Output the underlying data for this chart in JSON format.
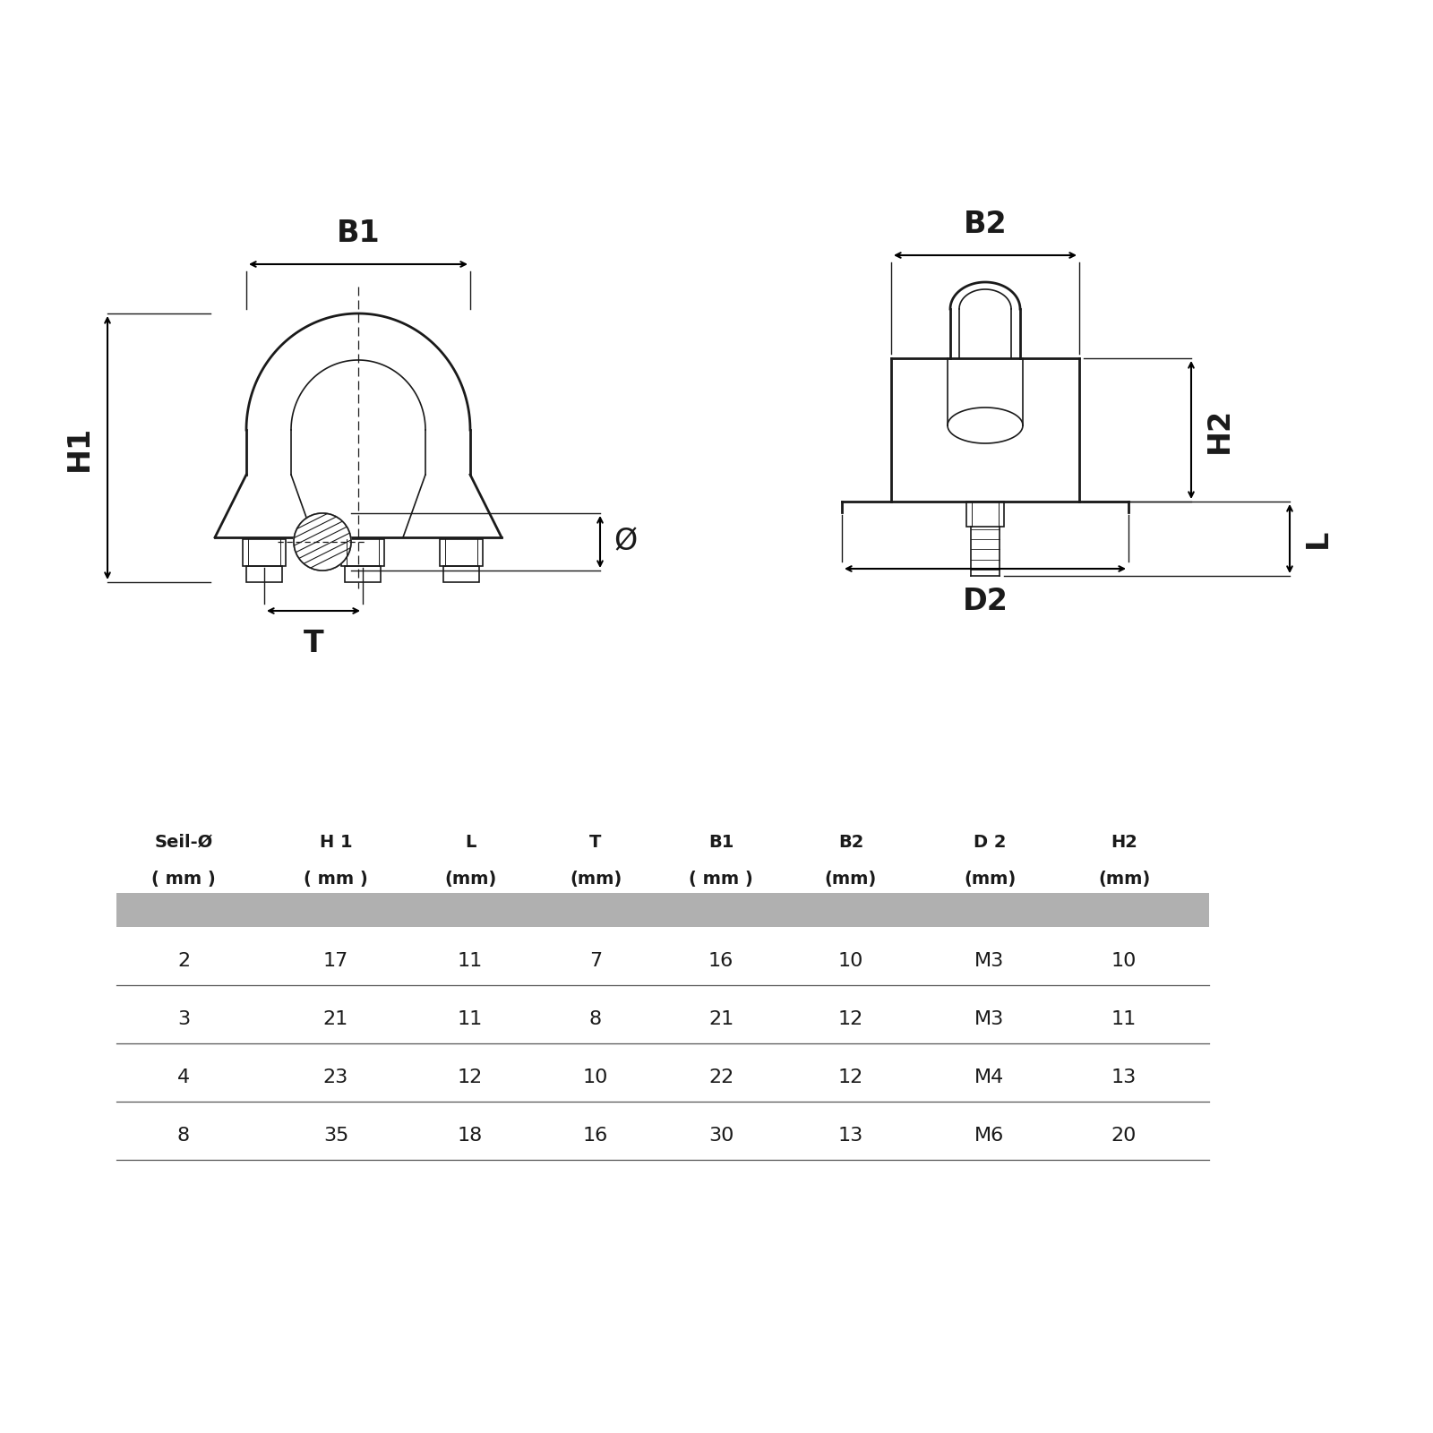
{
  "bg_color": "#ffffff",
  "line_color": "#1a1a1a",
  "table_header_line1": [
    "Seil-Ø",
    "H 1",
    "L",
    "T",
    "B1",
    "B2",
    "D 2",
    "H2"
  ],
  "table_header_line2": [
    "( mm )",
    "( mm )",
    "(mm)",
    "(mm)",
    "( mm )",
    "(mm)",
    "(mm)",
    "(mm)"
  ],
  "table_rows": [
    [
      "2",
      "17",
      "11",
      "7",
      "16",
      "10",
      "M3",
      "10"
    ],
    [
      "3",
      "21",
      "11",
      "8",
      "21",
      "12",
      "M3",
      "11"
    ],
    [
      "4",
      "23",
      "12",
      "10",
      "22",
      "12",
      "M4",
      "13"
    ],
    [
      "8",
      "35",
      "18",
      "16",
      "30",
      "13",
      "M6",
      "20"
    ]
  ],
  "gray_bar_color": "#b0b0b0",
  "separator_color": "#555555",
  "lw_main": 2.0,
  "lw_thin": 1.2,
  "lw_dim": 1.5
}
